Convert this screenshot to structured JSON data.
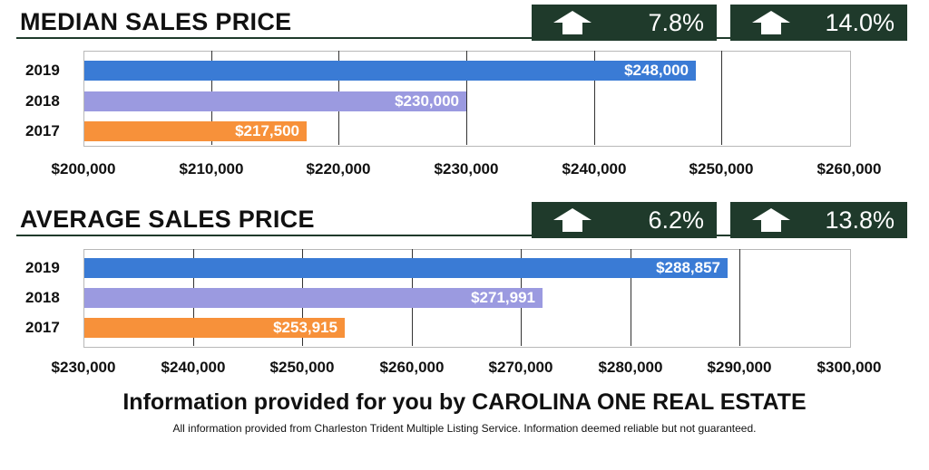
{
  "colors": {
    "dark_green": "#1f3a2b",
    "bar_2019": "#3a7bd5",
    "bar_2018": "#9b9ae0",
    "bar_2017": "#f7913a",
    "grid": "#333333"
  },
  "charts": [
    {
      "section_title": "MEDIAN SALES PRICE",
      "badges": [
        {
          "icon": "up-arrow-icon",
          "value": "7.8%"
        },
        {
          "icon": "up-arrow-icon",
          "value": "14.0%"
        }
      ]
    },
    {
      "section_title": "AVERAGE SALES PRICE",
      "badges": [
        {
          "icon": "up-arrow-icon",
          "value": "6.2%"
        },
        {
          "icon": "up-arrow-icon",
          "value": "13.8%"
        }
      ]
    }
  ],
  "chart_data": [
    {
      "type": "bar",
      "orientation": "horizontal",
      "title": "MEDIAN SALES PRICE",
      "categories": [
        "2019",
        "2018",
        "2017"
      ],
      "values": [
        248000,
        230000,
        217500
      ],
      "value_labels": [
        "$248,000",
        "$230,000",
        "$217,500"
      ],
      "xlim": [
        200000,
        260000
      ],
      "x_ticks": [
        "$200,000",
        "$210,000",
        "$220,000",
        "$230,000",
        "$240,000",
        "$250,000",
        "$260,000"
      ],
      "grid": true
    },
    {
      "type": "bar",
      "orientation": "horizontal",
      "title": "AVERAGE SALES PRICE",
      "categories": [
        "2019",
        "2018",
        "2017"
      ],
      "values": [
        288857,
        271991,
        253915
      ],
      "value_labels": [
        "$288,857",
        "$271,991",
        "$253,915"
      ],
      "xlim": [
        230000,
        300000
      ],
      "x_ticks": [
        "$230,000",
        "$240,000",
        "$250,000",
        "$260,000",
        "$270,000",
        "$280,000",
        "$290,000",
        "$300,000"
      ],
      "grid": true
    }
  ],
  "footer": {
    "main": "Information provided for you by CAROLINA ONE REAL ESTATE",
    "sub": "All information provided from Charleston Trident Multiple Listing Service.  Information deemed reliable but not guaranteed."
  }
}
